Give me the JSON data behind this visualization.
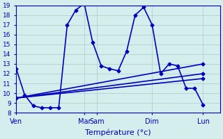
{
  "xlabel": "Température (°c)",
  "bg_color": "#d4eeee",
  "grid_color": "#aacccc",
  "line_color": "#0000bb",
  "ylim": [
    8,
    19
  ],
  "xlim": [
    0,
    24
  ],
  "yticks": [
    8,
    9,
    10,
    11,
    12,
    13,
    14,
    15,
    16,
    17,
    18,
    19
  ],
  "xtick_positions": [
    0,
    8,
    9.5,
    16,
    22
  ],
  "xtick_labels": [
    "Ven",
    "Mar",
    "Sam",
    "Dim",
    "Lun"
  ],
  "series_main": {
    "x": [
      0,
      1,
      2,
      3,
      4,
      5,
      6,
      7,
      8,
      9,
      10,
      11,
      12,
      13,
      14,
      15,
      16,
      17,
      18,
      19,
      20,
      21,
      22
    ],
    "y": [
      12.5,
      9.8,
      8.7,
      8.5,
      8.5,
      8.5,
      17.0,
      18.5,
      19.2,
      15.2,
      12.8,
      12.5,
      12.3,
      14.3,
      18.0,
      18.8,
      17.0,
      12.0,
      13.0,
      12.8,
      10.5,
      10.5,
      8.8
    ]
  },
  "series_flat": [
    {
      "x": [
        0,
        22
      ],
      "y": [
        9.5,
        12.0
      ]
    },
    {
      "x": [
        0,
        22
      ],
      "y": [
        9.5,
        11.5
      ]
    },
    {
      "x": [
        0,
        22
      ],
      "y": [
        9.5,
        13.0
      ]
    }
  ]
}
